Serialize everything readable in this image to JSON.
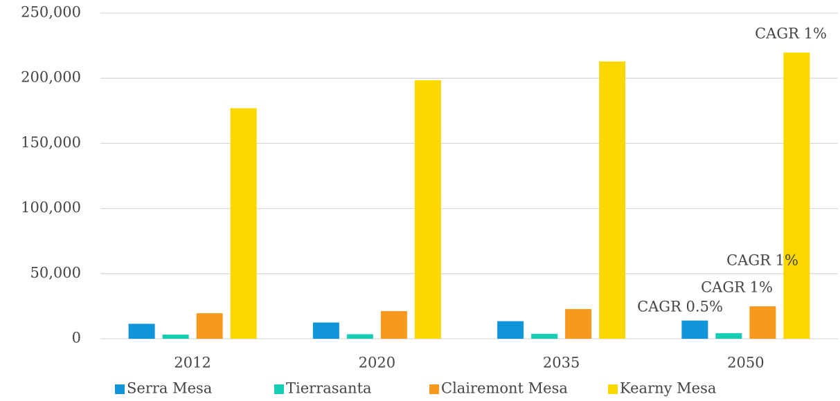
{
  "chart_data": {
    "type": "bar",
    "categories": [
      "2012",
      "2020",
      "2035",
      "2050"
    ],
    "series": [
      {
        "name": "Serra Mesa",
        "color": "#0f95d8",
        "values": [
          11500,
          12500,
          13500,
          14000
        ]
      },
      {
        "name": "Tierrasanta",
        "color": "#17cdb5",
        "values": [
          3200,
          3500,
          3800,
          4300
        ]
      },
      {
        "name": "Clairemont Mesa",
        "color": "#f7991d",
        "values": [
          19600,
          21200,
          22800,
          24900
        ]
      },
      {
        "name": "Kearny Mesa",
        "color": "#fbd700",
        "values": [
          177000,
          198500,
          212900,
          219700
        ]
      }
    ],
    "annotations": [
      "CAGR 1%",
      "CAGR 1%",
      "CAGR 1%",
      "CAGR 0.5%"
    ],
    "ylim": [
      0,
      250000
    ],
    "yticks": [
      0,
      {
        "value": 50000,
        "label": "50,000"
      },
      {
        "value": 100000,
        "label": "100,000"
      },
      {
        "value": 150000,
        "label": "150,000"
      },
      {
        "value": 200000,
        "label": "200,000"
      },
      {
        "value": 250000,
        "label": "250,000"
      }
    ],
    "grid": true,
    "legend": "bottom"
  }
}
